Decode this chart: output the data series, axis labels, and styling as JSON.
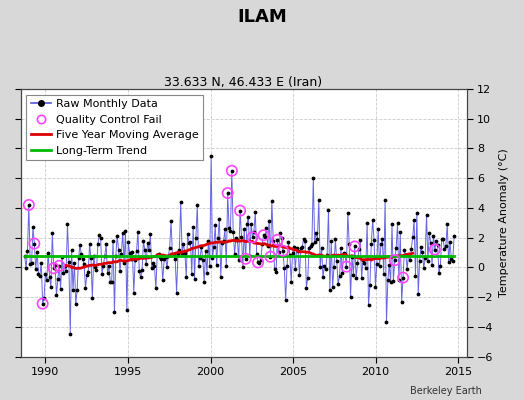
{
  "title": "ILAM",
  "subtitle": "33.633 N, 46.433 E (Iran)",
  "ylabel": "Temperature Anomaly (°C)",
  "credit": "Berkeley Earth",
  "ylim": [
    -6,
    12
  ],
  "xlim": [
    1988.5,
    2015.5
  ],
  "yticks": [
    -6,
    -4,
    -2,
    0,
    2,
    4,
    6,
    8,
    10,
    12
  ],
  "xticks": [
    1990,
    1995,
    2000,
    2005,
    2010,
    2015
  ],
  "bg_color": "#d8d8d8",
  "plot_bg_color": "#ffffff",
  "raw_line_color": "#5555dd",
  "raw_dot_color": "#000000",
  "qc_fail_color": "#ff44ff",
  "moving_avg_color": "#dd0000",
  "trend_color": "#00bb00",
  "long_term_trend_value": 0.75,
  "seed": 42,
  "n_months": 312,
  "start_year": 1988.75,
  "grid_color": "#cccccc",
  "title_fontsize": 13,
  "subtitle_fontsize": 9,
  "legend_fontsize": 8,
  "tick_fontsize": 8,
  "ylabel_fontsize": 8
}
